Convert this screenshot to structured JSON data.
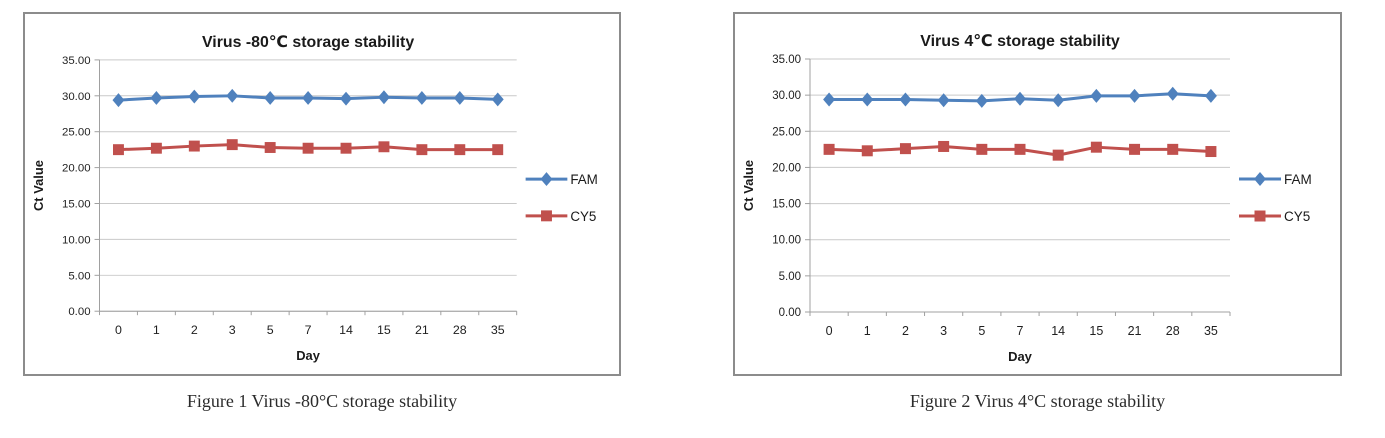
{
  "colors": {
    "fam": "#4F81BD",
    "cy5": "#C0504D",
    "gridline": "#C9C9C9",
    "axis": "#A0A0A0",
    "panel_border": "#8C8C8C",
    "text": "#1F1F1F"
  },
  "chart_data": [
    {
      "type": "line",
      "title": "Virus -80℃ storage stability",
      "caption": "Figure 1 Virus -80°C storage stability",
      "xlabel": "Day",
      "ylabel": "Ct Value",
      "ylim": [
        0,
        35
      ],
      "ytick_step": 5,
      "grid": "horizontal",
      "legend_position": "right",
      "categories": [
        "0",
        "1",
        "2",
        "3",
        "5",
        "7",
        "14",
        "15",
        "21",
        "28",
        "35"
      ],
      "series": [
        {
          "name": "FAM",
          "marker": "diamond",
          "color": "#4F81BD",
          "values": [
            29.4,
            29.7,
            29.9,
            30.0,
            29.7,
            29.7,
            29.6,
            29.8,
            29.7,
            29.7,
            29.5
          ]
        },
        {
          "name": "CY5",
          "marker": "square",
          "color": "#C0504D",
          "values": [
            22.5,
            22.7,
            23.0,
            23.2,
            22.8,
            22.7,
            22.7,
            22.9,
            22.5,
            22.5,
            22.5
          ]
        }
      ]
    },
    {
      "type": "line",
      "title": "Virus 4℃ storage stability",
      "caption": "Figure 2 Virus 4°C storage stability",
      "xlabel": "Day",
      "ylabel": "Ct Value",
      "ylim": [
        0,
        35
      ],
      "ytick_step": 5,
      "grid": "horizontal",
      "legend_position": "right",
      "categories": [
        "0",
        "1",
        "2",
        "3",
        "5",
        "7",
        "14",
        "15",
        "21",
        "28",
        "35"
      ],
      "series": [
        {
          "name": "FAM",
          "marker": "diamond",
          "color": "#4F81BD",
          "values": [
            29.4,
            29.4,
            29.4,
            29.3,
            29.2,
            29.5,
            29.3,
            29.9,
            29.9,
            30.2,
            29.9
          ]
        },
        {
          "name": "CY5",
          "marker": "square",
          "color": "#C0504D",
          "values": [
            22.5,
            22.3,
            22.6,
            22.9,
            22.5,
            22.5,
            21.7,
            22.8,
            22.5,
            22.5,
            22.2
          ]
        }
      ]
    }
  ]
}
